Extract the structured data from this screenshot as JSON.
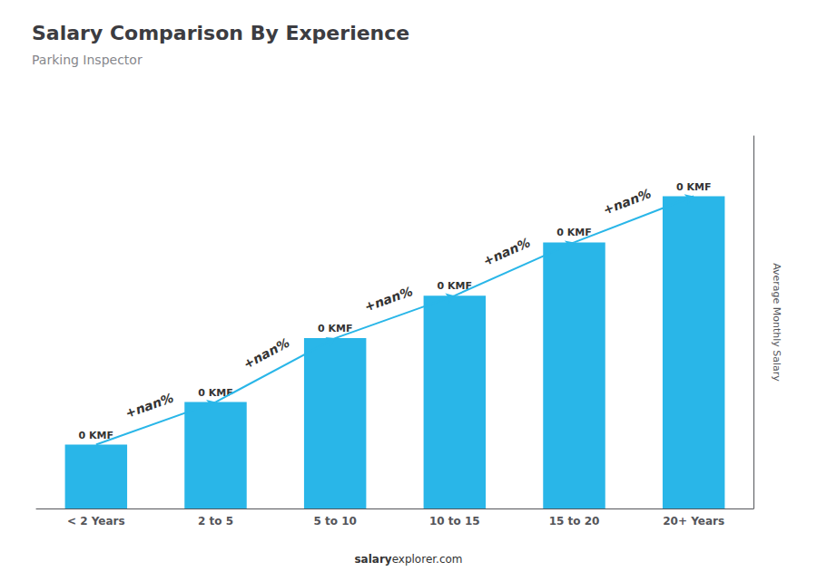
{
  "chart_data": {
    "type": "bar",
    "title": "Salary Comparison By Experience",
    "subtitle": "Parking Inspector",
    "categories": [
      "< 2 Years",
      "2 to 5",
      "5 to 10",
      "10 to 15",
      "15 to 20",
      "20+ Years"
    ],
    "values": [
      0.18,
      0.3,
      0.48,
      0.6,
      0.75,
      0.88
    ],
    "value_labels": [
      "0 KMF",
      "0 KMF",
      "0 KMF",
      "0 KMF",
      "0 KMF",
      "0 KMF"
    ],
    "data_labels": true,
    "color": "#29B6E8",
    "y_label": "Average Monthly Salary",
    "ylim": [
      0,
      1.05
    ],
    "tick_labels": "x",
    "grid": false,
    "annotations": [
      "+nan%",
      "+nan%",
      "+nan%",
      "+nan%",
      "+nan%"
    ],
    "watermark": [
      "salary",
      "explorer.com"
    ]
  }
}
